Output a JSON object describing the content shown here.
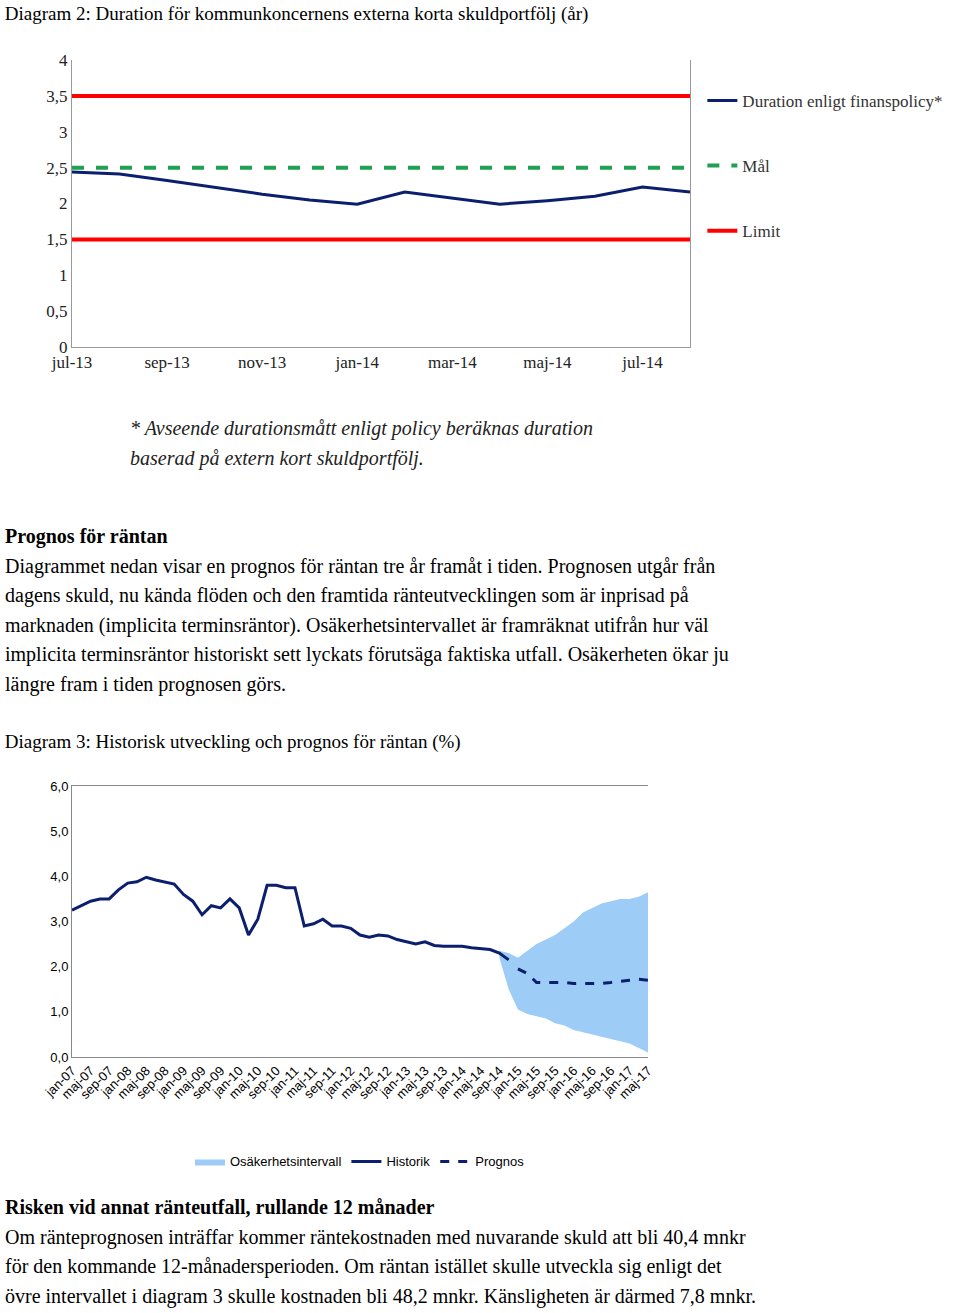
{
  "chart_data": [
    {
      "type": "line",
      "title": "Diagram 2: Duration för kommunkoncernens externa korta skuldportfölj (år)",
      "categories": [
        "jul-13",
        null,
        "sep-13",
        null,
        "nov-13",
        null,
        "jan-14",
        null,
        "mar-14",
        null,
        "maj-14",
        null,
        "jul-14",
        null
      ],
      "series": [
        {
          "name": "Duration enligt finanspolicy*",
          "color": "#0b1f6e",
          "line_style": "solid",
          "values": [
            2.44,
            2.41,
            2.32,
            2.22,
            2.13,
            2.05,
            1.99,
            2.16,
            2.07,
            1.99,
            2.04,
            2.1,
            2.23,
            2.16
          ]
        },
        {
          "name": "Mål",
          "color": "#1fa055",
          "line_style": "dashed",
          "levels": [
            2.5
          ]
        },
        {
          "name": "Limit",
          "color": "#ff0000",
          "line_style": "solid",
          "levels": [
            1.5,
            3.5
          ]
        }
      ],
      "ylim": [
        0,
        4
      ],
      "yticks": [
        0,
        {
          "value": 0.5,
          "label": "0,5"
        },
        1,
        {
          "value": 1.5,
          "label": "1,5"
        },
        2,
        {
          "value": 2.5,
          "label": "2,5"
        },
        3,
        {
          "value": 3.5,
          "label": "3,5"
        },
        4
      ],
      "grid": false,
      "legend": "right"
    },
    {
      "type": "line",
      "title": "Diagram 3: Historisk utveckling och prognos för räntan (%)",
      "categories": [
        "jan-07",
        null,
        "maj-07",
        null,
        "sep-07",
        null,
        "jan-08",
        null,
        "maj-08",
        null,
        "sep-08",
        null,
        "jan-09",
        null,
        "maj-09",
        null,
        "sep-09",
        null,
        "jan-10",
        null,
        "maj-10",
        null,
        "sep-10",
        null,
        "jan-11",
        null,
        "maj-11",
        null,
        "sep-11",
        null,
        "jan-12",
        null,
        "maj-12",
        null,
        "sep-12",
        null,
        "jan-13",
        null,
        "maj-13",
        null,
        "sep-13",
        null,
        "jan-14",
        null,
        "maj-14",
        null,
        "sep-14",
        null,
        "jan-15",
        null,
        "maj-15",
        null,
        "sep-15",
        null,
        "jan-16",
        null,
        "maj-16",
        null,
        "sep-16",
        null,
        "jan-17",
        null,
        "maj-17"
      ],
      "series": [
        {
          "name": "Osäkerhetsintervall",
          "type": "area",
          "color": "#9dcdf7",
          "lower": [
            null,
            null,
            null,
            null,
            null,
            null,
            null,
            null,
            null,
            null,
            null,
            null,
            null,
            null,
            null,
            null,
            null,
            null,
            null,
            null,
            null,
            null,
            null,
            null,
            null,
            null,
            null,
            null,
            null,
            null,
            null,
            null,
            null,
            null,
            null,
            null,
            null,
            null,
            null,
            null,
            null,
            null,
            null,
            null,
            null,
            null,
            2.2,
            1.5,
            1.05,
            0.95,
            0.9,
            0.85,
            0.75,
            0.7,
            0.6,
            0.55,
            0.5,
            0.45,
            0.4,
            0.35,
            0.3,
            0.2,
            0.1
          ],
          "upper": [
            null,
            null,
            null,
            null,
            null,
            null,
            null,
            null,
            null,
            null,
            null,
            null,
            null,
            null,
            null,
            null,
            null,
            null,
            null,
            null,
            null,
            null,
            null,
            null,
            null,
            null,
            null,
            null,
            null,
            null,
            null,
            null,
            null,
            null,
            null,
            null,
            null,
            null,
            null,
            null,
            null,
            null,
            null,
            null,
            null,
            null,
            2.35,
            2.3,
            2.2,
            2.35,
            2.5,
            2.6,
            2.7,
            2.85,
            3.0,
            3.2,
            3.3,
            3.4,
            3.45,
            3.5,
            3.5,
            3.55,
            3.65
          ]
        },
        {
          "name": "Historik",
          "color": "#0b1f6e",
          "line_style": "solid",
          "values": [
            3.25,
            3.35,
            3.45,
            3.5,
            3.5,
            3.7,
            3.85,
            3.88,
            3.98,
            3.92,
            3.87,
            3.83,
            3.6,
            3.45,
            3.15,
            3.35,
            3.3,
            3.5,
            3.3,
            2.7,
            3.05,
            3.8,
            3.8,
            3.75,
            3.75,
            2.9,
            2.95,
            3.05,
            2.9,
            2.9,
            2.85,
            2.7,
            2.65,
            2.7,
            2.68,
            2.6,
            2.55,
            2.5,
            2.55,
            2.47,
            2.45,
            2.45,
            2.45,
            2.42,
            2.4,
            2.38,
            2.3,
            2.15,
            null,
            null,
            null,
            null,
            null,
            null,
            null,
            null,
            null,
            null,
            null,
            null,
            null,
            null,
            null
          ]
        },
        {
          "name": "Prognos",
          "color": "#0b1f6e",
          "line_style": "dashed",
          "values": [
            null,
            null,
            null,
            null,
            null,
            null,
            null,
            null,
            null,
            null,
            null,
            null,
            null,
            null,
            null,
            null,
            null,
            null,
            null,
            null,
            null,
            null,
            null,
            null,
            null,
            null,
            null,
            null,
            null,
            null,
            null,
            null,
            null,
            null,
            null,
            null,
            null,
            null,
            null,
            null,
            null,
            null,
            null,
            null,
            null,
            null,
            null,
            null,
            1.95,
            1.85,
            1.65,
            1.65,
            1.65,
            1.65,
            1.63,
            1.63,
            1.62,
            1.63,
            1.65,
            1.68,
            1.7,
            1.72,
            1.7
          ]
        }
      ],
      "ylim": [
        0,
        6
      ],
      "yticks": [
        {
          "value": 0,
          "label": "0,0"
        },
        {
          "value": 1,
          "label": "1,0"
        },
        {
          "value": 2,
          "label": "2,0"
        },
        {
          "value": 3,
          "label": "3,0"
        },
        {
          "value": 4,
          "label": "4,0"
        },
        {
          "value": 5,
          "label": "5,0"
        },
        {
          "value": 6,
          "label": "6,0"
        }
      ],
      "grid": false,
      "legend": "bottom"
    }
  ],
  "footnote": {
    "lines": [
      "* Avseende durationsmått enligt policy beräknas duration",
      "baserad på extern kort skuldportfölj."
    ]
  },
  "sections": [
    {
      "heading": "Prognos för räntan",
      "lines": [
        "Diagrammet nedan visar en prognos för räntan tre år framåt i tiden. Prognosen utgår från",
        "dagens skuld, nu kända flöden och den framtida ränteutvecklingen som är inprisad på",
        "marknaden (implicita terminsräntor). Osäkerhetsintervallet är framräknat utifrån hur väl",
        "implicita terminsräntor historiskt sett lyckats förutsäga faktiska utfall. Osäkerheten ökar ju",
        "längre fram i tiden prognosen görs."
      ]
    },
    {
      "heading": "Risken vid annat ränteutfall, rullande 12 månader",
      "lines": [
        "Om ränteprognosen inträffar kommer räntekostnaden med nuvarande skuld att bli 40,4 mnkr",
        "för den kommande 12-månadersperioden. Om räntan istället skulle utveckla sig enligt det",
        "övre intervallet i diagram 3 skulle kostnaden bli 48,2 mnkr. Känsligheten är därmed 7,8 mnkr."
      ]
    }
  ]
}
